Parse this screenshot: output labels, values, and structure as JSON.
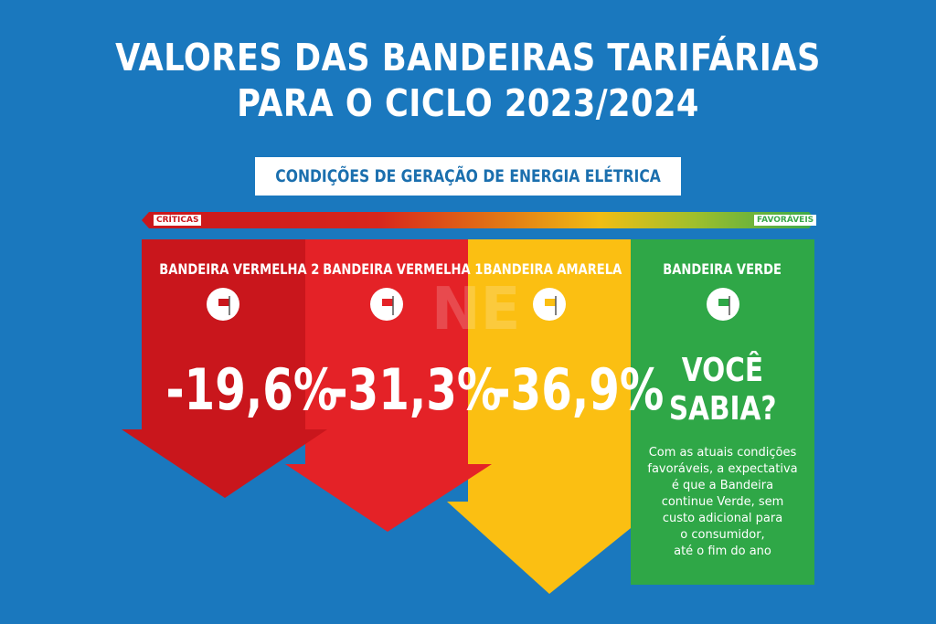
{
  "header": {
    "title_line1": "VALORES DAS BANDEIRAS TARIFÁRIAS",
    "title_line2": "PARA O CICLO 2023/2024",
    "subtitle": "CONDIÇÕES DE GERAÇÃO DE ENERGIA ELÉTRICA"
  },
  "scale": {
    "left_label": "CRÍTICAS",
    "right_label": "FAVORÁVEIS"
  },
  "flags": [
    {
      "name": "BANDEIRA VERMELHA 2",
      "value": "-19,6%",
      "color": "#c9161c"
    },
    {
      "name": "BANDEIRA VERMELHA 1",
      "value": "-31,3%",
      "color": "#e42227"
    },
    {
      "name": "BANDEIRA AMARELA",
      "value": "-36,9%",
      "color": "#fbbf12"
    },
    {
      "name": "BANDEIRA VERDE",
      "color": "#2fa747"
    }
  ],
  "info": {
    "heading_line1": "VOCÊ",
    "heading_line2": "SABIA?",
    "text_lines": [
      "Com as atuais condições",
      "favoráveis, a expectativa",
      "é que a Bandeira",
      "continue Verde, sem",
      "custo adicional para",
      "o consumidor,",
      "até o fim do ano"
    ]
  },
  "watermark": "NE",
  "colors": {
    "background": "#1a78be",
    "accent_text": "#1b6fae"
  }
}
